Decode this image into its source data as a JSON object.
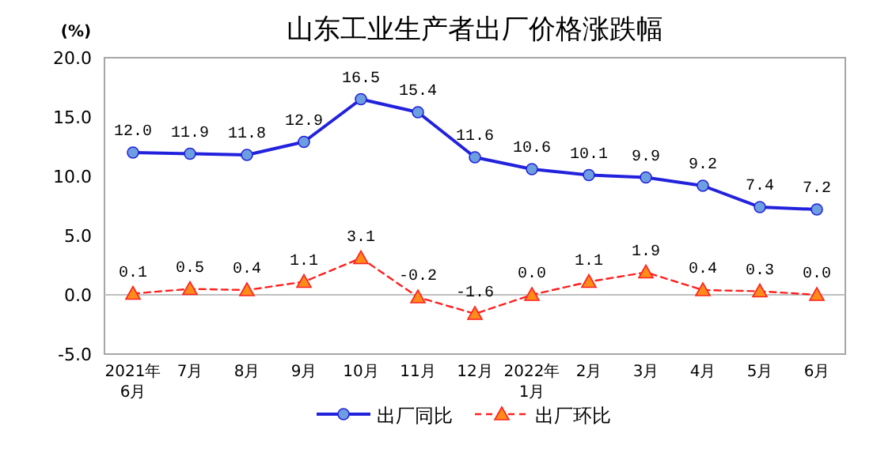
{
  "chart_data": {
    "type": "line",
    "title": "山东工业生产者出厂价格涨跌幅",
    "ylabel": "(%)",
    "categories": [
      "2021年\n6月",
      "7月",
      "8月",
      "9月",
      "10月",
      "11月",
      "12月",
      "2022年\n1月",
      "2月",
      "3月",
      "4月",
      "5月",
      "6月"
    ],
    "series": [
      {
        "name": "出厂同比",
        "color": "#2222dd",
        "marker": "circle",
        "line_style": "solid",
        "values": [
          12.0,
          11.9,
          11.8,
          12.9,
          16.5,
          15.4,
          11.6,
          10.6,
          10.1,
          9.9,
          9.2,
          7.4,
          7.2
        ],
        "value_labels": [
          "12.0",
          "11.9",
          "11.8",
          "12.9",
          "16.5",
          "15.4",
          "11.6",
          "10.6",
          "10.1",
          "9.9",
          "9.2",
          "7.4",
          "7.2"
        ]
      },
      {
        "name": "出厂环比",
        "color": "#ff2020",
        "marker": "triangle",
        "line_style": "dashed",
        "values": [
          0.1,
          0.5,
          0.4,
          1.1,
          3.1,
          -0.2,
          -1.6,
          0.0,
          1.1,
          1.9,
          0.4,
          0.3,
          0.0
        ],
        "value_labels": [
          "0.1",
          "0.5",
          "0.4",
          "1.1",
          "3.1",
          "-0.2",
          "-1.6",
          "0.0",
          "1.1",
          "1.9",
          "0.4",
          "0.3",
          "0.0"
        ]
      }
    ],
    "ylim": [
      -5,
      20
    ],
    "yticks": [
      {
        "value": -5,
        "label": "-5.0"
      },
      {
        "value": 0,
        "label": "0.0"
      },
      {
        "value": 5,
        "label": "5.0"
      },
      {
        "value": 10,
        "label": "10.0"
      },
      {
        "value": 15,
        "label": "15.0"
      },
      {
        "value": 20,
        "label": "20.0"
      }
    ],
    "ref_lines": [
      {
        "axis": "y",
        "value": 0,
        "color": "#bfbfbf"
      }
    ],
    "grid": false,
    "legend": "bottom"
  }
}
